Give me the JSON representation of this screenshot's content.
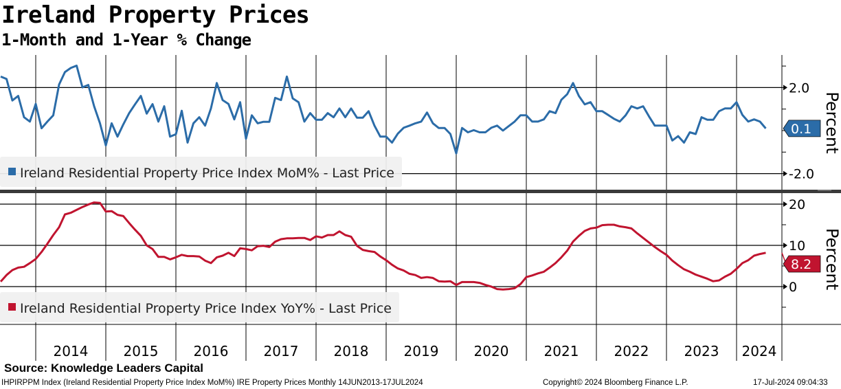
{
  "header": {
    "title": "Ireland Property Prices",
    "subtitle": "1-Month and 1-Year % Change"
  },
  "footer": {
    "source": "Source: Knowledge Leaders Capital",
    "ticker_info": "IHPIRPPM Index (Ireland Residential Property Price Index MoM%) IRE Property Prices  Monthly 14JUN2013-17JUL2024",
    "copyright": "Copyright© 2024 Bloomberg Finance L.P.",
    "timestamp": "17-Jul-2024 09:04:33"
  },
  "colors": {
    "mom": "#2b6ca8",
    "yoy": "#c0142f",
    "legend_bg": "#f0f0f0",
    "divider": "#3a3a3a"
  },
  "chart_data": [
    {
      "type": "line",
      "panel": "top",
      "x_start": "2013-06",
      "frequency": "monthly",
      "ylabel": "Percent",
      "ylim": [
        -2.8,
        3.5
      ],
      "yticks": [
        2.0,
        -2.0
      ],
      "ytick_labels": [
        "2.0",
        "-2.0"
      ],
      "grid": true,
      "legend": "bottom-left",
      "series": [
        {
          "name": "Ireland Residential Property Price Index MoM% - Last Price",
          "last_value_label": "0.1",
          "values": [
            2.51,
            2.4,
            1.4,
            1.61,
            0.62,
            0.42,
            1.24,
            0.11,
            0.42,
            0.71,
            2.14,
            2.72,
            2.91,
            3.02,
            2.01,
            2.12,
            1.13,
            0.34,
            -0.69,
            0.34,
            -0.28,
            0.29,
            0.81,
            1.22,
            1.61,
            0.79,
            1.23,
            0.42,
            1.13,
            -0.28,
            -0.17,
            0.92,
            -0.56,
            0.34,
            0.62,
            0.23,
            1.03,
            2.21,
            1.42,
            1.24,
            0.52,
            1.32,
            -0.38,
            0.71,
            0.34,
            0.41,
            0.41,
            1.52,
            1.42,
            2.51,
            1.5,
            1.32,
            0.42,
            0.81,
            0.5,
            0.5,
            0.81,
            0.62,
            1.03,
            0.62,
            1.03,
            0.6,
            0.6,
            0.9,
            0.23,
            -0.28,
            -0.28,
            -0.56,
            -0.14,
            0.13,
            0.23,
            0.34,
            0.42,
            0.84,
            0.34,
            0.12,
            0.12,
            -0.16,
            -1.06,
            0.12,
            -0.08,
            0.02,
            -0.08,
            -0.08,
            0.13,
            0.23,
            0.0,
            0.21,
            0.42,
            0.71,
            0.71,
            0.42,
            0.42,
            0.52,
            0.9,
            0.81,
            1.43,
            1.69,
            2.21,
            1.61,
            1.22,
            1.32,
            0.9,
            0.9,
            0.73,
            0.55,
            0.42,
            0.71,
            1.13,
            1.03,
            1.13,
            0.66,
            0.23,
            0.23,
            0.23,
            -0.46,
            -0.26,
            -0.56,
            -0.08,
            -0.16,
            0.62,
            0.5,
            0.5,
            0.9,
            1.03,
            1.03,
            1.32,
            0.73,
            0.42,
            0.52,
            0.42,
            0.1
          ]
        }
      ]
    },
    {
      "type": "line",
      "panel": "bottom",
      "x_start": "2013-06",
      "frequency": "monthly",
      "ylabel": "Percent",
      "ylim": [
        -9.2,
        22.5
      ],
      "yticks": [
        20,
        10,
        0
      ],
      "ytick_labels": [
        "20",
        "10",
        "0"
      ],
      "grid": true,
      "legend": "bottom-left",
      "series": [
        {
          "name": "Ireland Residential Property Price Index YoY% - Last Price",
          "last_value_label": "8.2",
          "values": [
            1.2,
            2.8,
            4.0,
            4.6,
            4.8,
            5.7,
            6.7,
            8.4,
            10.4,
            12.5,
            14.4,
            17.5,
            17.9,
            18.6,
            19.3,
            19.9,
            20.4,
            20.3,
            18.2,
            18.3,
            17.4,
            17.1,
            15.4,
            13.8,
            12.3,
            10.0,
            9.1,
            7.2,
            7.2,
            6.6,
            7.1,
            7.7,
            7.4,
            7.4,
            7.3,
            6.3,
            5.7,
            7.1,
            7.5,
            8.2,
            7.4,
            9.3,
            9.1,
            8.8,
            9.8,
            9.9,
            9.6,
            10.9,
            11.5,
            11.7,
            11.7,
            11.8,
            11.8,
            11.3,
            12.2,
            11.9,
            12.5,
            12.5,
            13.4,
            12.5,
            12.1,
            9.9,
            8.9,
            8.6,
            8.4,
            7.3,
            6.4,
            5.3,
            4.4,
            3.9,
            3.1,
            2.8,
            2.1,
            2.3,
            2.1,
            1.3,
            1.2,
            1.3,
            0.4,
            1.1,
            1.1,
            1.1,
            0.9,
            0.4,
            0.0,
            -0.6,
            -0.7,
            -0.6,
            -0.4,
            0.6,
            2.3,
            2.7,
            3.2,
            3.6,
            4.6,
            5.7,
            7.1,
            8.7,
            10.9,
            12.3,
            13.5,
            14.1,
            14.3,
            14.9,
            15.0,
            15.0,
            14.6,
            14.4,
            14.1,
            12.9,
            11.8,
            10.7,
            9.6,
            8.6,
            7.7,
            6.3,
            5.2,
            4.2,
            3.6,
            2.9,
            2.4,
            1.9,
            1.3,
            1.5,
            2.4,
            3.1,
            4.3,
            5.7,
            6.4,
            7.5,
            7.9,
            8.2
          ]
        }
      ]
    }
  ],
  "x_axis": {
    "years": [
      "2014",
      "2015",
      "2016",
      "2017",
      "2018",
      "2019",
      "2020",
      "2021",
      "2022",
      "2023",
      "2024"
    ]
  }
}
